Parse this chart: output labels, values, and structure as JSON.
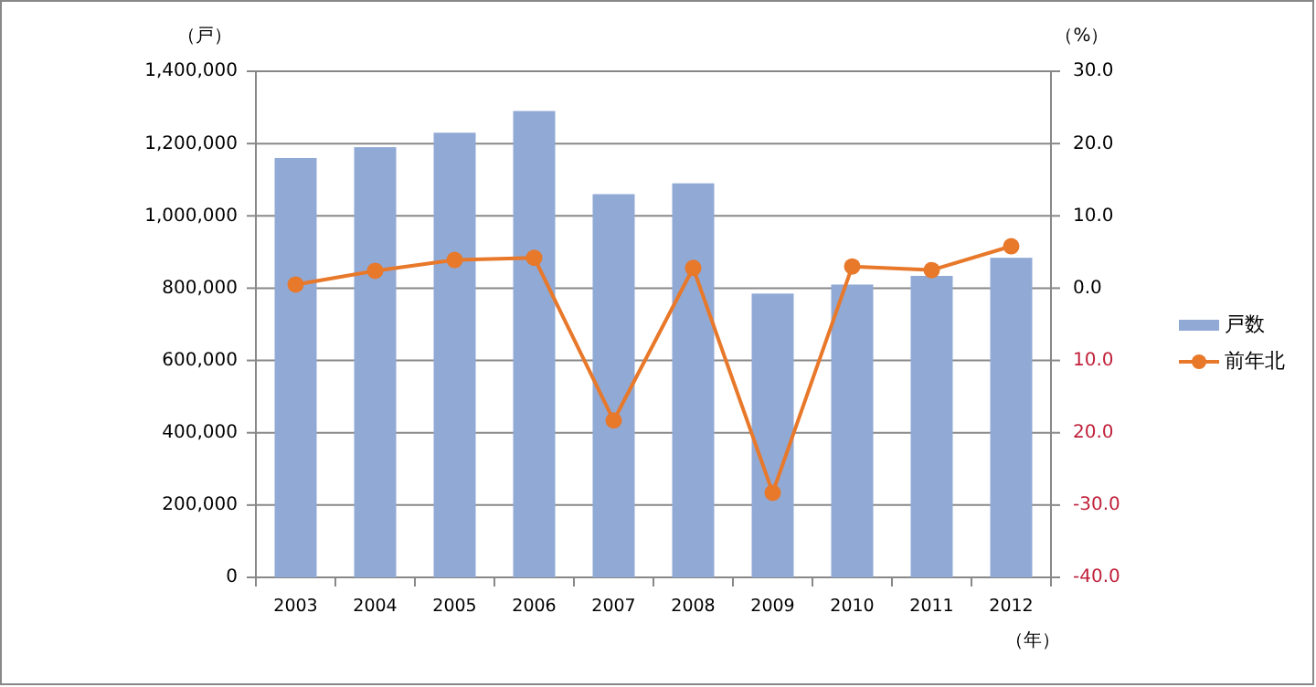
{
  "chart_data": {
    "type": "bar",
    "ylabel": "（戸）",
    "y2label": "（%）",
    "xlabel": "（年）",
    "categories": [
      "2003",
      "2004",
      "2005",
      "2006",
      "2007",
      "2008",
      "2009",
      "2010",
      "2011",
      "2012"
    ],
    "series": [
      {
        "name": "戸数",
        "color": "#91a9d5",
        "values": [
          1160000,
          1190000,
          1230000,
          1290000,
          1060000,
          1090000,
          785000,
          810000,
          834000,
          884000
        ]
      },
      {
        "name": "前年北",
        "type": "line",
        "axis": "y2",
        "color": "#e8782a",
        "marker": "circle",
        "values": [
          0.5,
          2.4,
          3.9,
          4.2,
          -18.3,
          2.8,
          -28.3,
          3.0,
          2.5,
          5.8
        ]
      }
    ],
    "ylim": [
      0,
      1400000
    ],
    "yticks": [
      {
        "value": 0,
        "label": "0"
      },
      {
        "value": 200000,
        "label": "200,000"
      },
      {
        "value": 400000,
        "label": "400,000"
      },
      {
        "value": 600000,
        "label": "600,000"
      },
      {
        "value": 800000,
        "label": "800,000"
      },
      {
        "value": 1000000,
        "label": "1,000,000"
      },
      {
        "value": 1200000,
        "label": "1,200,000"
      },
      {
        "value": 1400000,
        "label": "1,400,000"
      }
    ],
    "y2lim": [
      -40,
      30
    ],
    "y2ticks": [
      {
        "value": -40,
        "label": "-40.0"
      },
      {
        "value": -30,
        "label": "-30.0"
      },
      {
        "value": -20,
        "label": "20.0"
      },
      {
        "value": -10,
        "label": "10.0"
      },
      {
        "value": 0,
        "label": "0.0"
      },
      {
        "value": 10,
        "label": "10.0"
      },
      {
        "value": 20,
        "label": "20.0"
      },
      {
        "value": 30,
        "label": "30.0"
      }
    ],
    "grid": "y",
    "legend": "right"
  }
}
